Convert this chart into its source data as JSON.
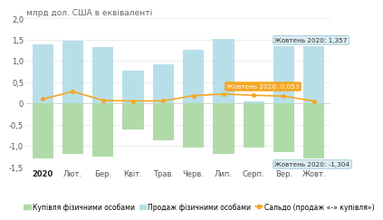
{
  "title": "млрд дол. США в еквіваленті",
  "categories": [
    "2020",
    "Лют.",
    "Бер.",
    "Квіт.",
    "Трав.",
    "Черв.",
    "Лип.",
    "Серп.",
    "Вер.",
    "Жовт."
  ],
  "buy": [
    -1.3,
    -1.2,
    -1.25,
    -0.62,
    -0.88,
    -1.05,
    -1.2,
    -1.05,
    -1.15,
    -1.304
  ],
  "sell": [
    1.4,
    1.48,
    1.32,
    0.78,
    0.92,
    1.27,
    1.52,
    0.05,
    1.357,
    1.357
  ],
  "saldo": [
    0.1,
    0.28,
    0.07,
    0.055,
    0.06,
    0.18,
    0.22,
    0.19,
    0.17,
    0.053
  ],
  "buy_color": "#b0dba8",
  "sell_color": "#b8dfe8",
  "saldo_color": "#f5a623",
  "ylim": [
    -1.5,
    2.0
  ],
  "yticks": [
    -1.5,
    -1.0,
    -0.5,
    0.0,
    0.5,
    1.0,
    1.5,
    2.0
  ],
  "annotation_sell": "Жовтень 2020: 1,357",
  "annotation_saldo": "Жовтень 2020: 0,053",
  "annotation_buy": "Жовтень 2020: -1,304",
  "legend_buy": "Купівля фізичними особами",
  "legend_sell": "Продаж фізичними особами",
  "legend_saldo": "Сальдо (продаж «-» купівля»)",
  "grid_color": "#e5e5e5",
  "bg_color": "#ffffff",
  "title_fontsize": 6.5,
  "tick_fontsize": 6,
  "legend_fontsize": 5.5
}
